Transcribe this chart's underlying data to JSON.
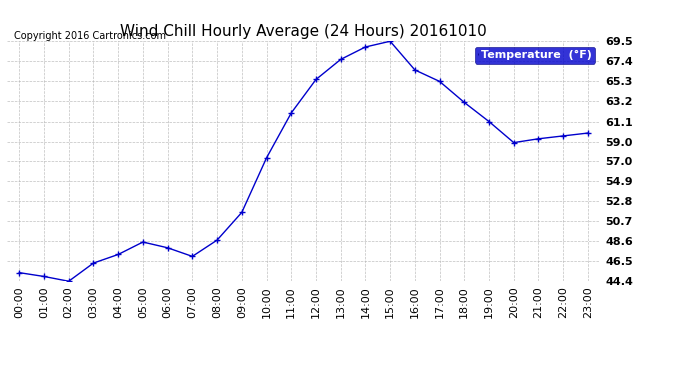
{
  "title": "Wind Chill Hourly Average (24 Hours) 20161010",
  "copyright": "Copyright 2016 Cartronics.com",
  "legend_label": "Temperature  (°F)",
  "hours": [
    "00:00",
    "01:00",
    "02:00",
    "03:00",
    "04:00",
    "05:00",
    "06:00",
    "07:00",
    "08:00",
    "09:00",
    "10:00",
    "11:00",
    "12:00",
    "13:00",
    "14:00",
    "15:00",
    "16:00",
    "17:00",
    "18:00",
    "19:00",
    "20:00",
    "21:00",
    "22:00",
    "23:00"
  ],
  "values": [
    45.3,
    44.9,
    44.4,
    46.3,
    47.2,
    48.5,
    47.9,
    47.0,
    48.7,
    51.6,
    57.3,
    62.0,
    65.5,
    67.6,
    68.9,
    69.5,
    66.5,
    65.3,
    63.1,
    61.1,
    58.9,
    59.3,
    59.6,
    59.9
  ],
  "ylim": [
    44.4,
    69.5
  ],
  "yticks": [
    44.4,
    46.5,
    48.6,
    50.7,
    52.8,
    54.9,
    57.0,
    59.0,
    61.1,
    63.2,
    65.3,
    67.4,
    69.5
  ],
  "ytick_labels": [
    "44.4",
    "46.5",
    "48.6",
    "50.7",
    "52.8",
    "54.9",
    "57.0",
    "59.0",
    "61.1",
    "63.2",
    "65.3",
    "67.4",
    "69.5"
  ],
  "line_color": "#0000CC",
  "marker_color": "#000066",
  "bg_color": "#ffffff",
  "plot_bg_color": "#ffffff",
  "grid_color": "#b0b0b0",
  "title_color": "#000000",
  "copyright_color": "#000000",
  "legend_bg": "#0000CC",
  "legend_text": "#ffffff",
  "title_fontsize": 11,
  "copyright_fontsize": 7,
  "tick_fontsize": 8,
  "legend_fontsize": 8
}
